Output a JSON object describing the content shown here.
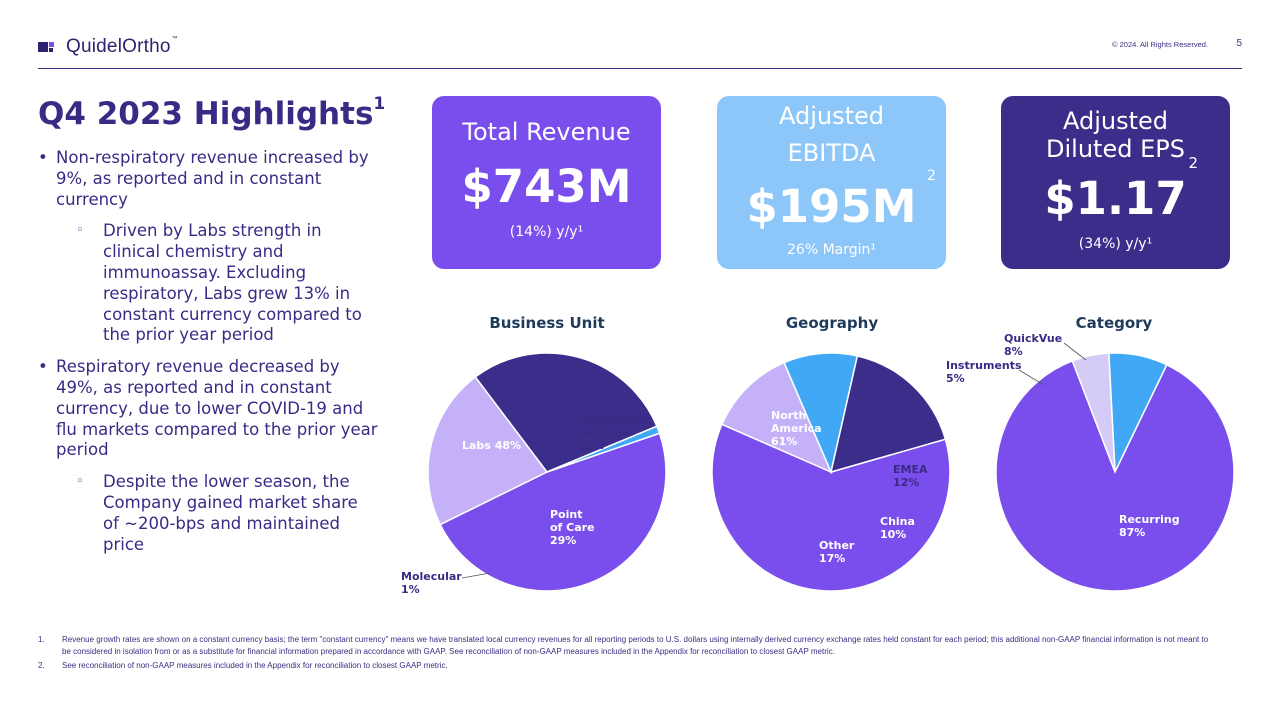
{
  "header": {
    "brand": "QuidelOrtho",
    "trademark": "™",
    "copyright": "© 2024. All Rights Reserved.",
    "page_number": "5"
  },
  "title": {
    "text": "Q4 2023 Highlights",
    "sup": "1"
  },
  "bullets": [
    {
      "level": 1,
      "text": "Non-respiratory revenue increased by 9%, as reported and in constant currency"
    },
    {
      "level": 2,
      "text": "Driven by Labs strength in clinical chemistry and immunoassay. Excluding respiratory, Labs grew 13% in constant currency compared to the prior year period"
    },
    {
      "level": 1,
      "text": "Respiratory revenue decreased by 49%, as reported and in constant currency, due to lower COVID-19 and flu markets compared to the prior year period"
    },
    {
      "level": 2,
      "text": "Despite the lower season, the Company gained market share of ~200-bps and maintained price"
    }
  ],
  "kpis": {
    "revenue": {
      "label": "Total Revenue",
      "value": "$743M",
      "sub": "(14%) y/y¹"
    },
    "ebitda": {
      "label_line1": "Adjusted",
      "label_line2": "EBITDA",
      "sup": "2",
      "value": "$195M",
      "sub": "26% Margin¹"
    },
    "eps": {
      "label_line1": "Adjusted",
      "label_line2": "Diluted EPS",
      "sup": "2",
      "value": "$1.17",
      "sub": "(34%) y/y¹"
    }
  },
  "colors": {
    "purple": "#7a4eec",
    "lavender": "#c4b1f8",
    "navy": "#3b2e8b",
    "sky": "#41a8f5",
    "light_sky": "#8dc6f9",
    "pale": "#d4ccf6"
  },
  "chart_data": [
    {
      "type": "pie",
      "title": "Business Unit",
      "slices": [
        {
          "name": "Labs",
          "label": "48%",
          "value": 48,
          "color": "#7a4eec"
        },
        {
          "name": "Transfusion Medicine",
          "label": "22%",
          "value": 22,
          "color": "#c4b1f8"
        },
        {
          "name": "Point of Care",
          "label": "29%",
          "value": 29,
          "color": "#3b2e8b"
        },
        {
          "name": "Molecular",
          "label": "1%",
          "value": 1,
          "color": "#41a8f5"
        }
      ]
    },
    {
      "type": "pie",
      "title": "Geography",
      "slices": [
        {
          "name": "North America",
          "label": "61%",
          "value": 61,
          "color": "#7a4eec"
        },
        {
          "name": "EMEA",
          "label": "12%",
          "value": 12,
          "color": "#c4b1f8"
        },
        {
          "name": "China",
          "label": "10%",
          "value": 10,
          "color": "#41a8f5"
        },
        {
          "name": "Other",
          "label": "17%",
          "value": 17,
          "color": "#3b2e8b"
        }
      ]
    },
    {
      "type": "pie",
      "title": "Category",
      "slices": [
        {
          "name": "QuickVue",
          "label": "8%",
          "value": 8,
          "color": "#41a8f5"
        },
        {
          "name": "Recurring",
          "label": "87%",
          "value": 87,
          "color": "#7a4eec"
        },
        {
          "name": "Instruments",
          "label": "5%",
          "value": 5,
          "color": "#d4ccf6"
        }
      ]
    }
  ],
  "footnotes": [
    {
      "num": "1.",
      "text": "Revenue growth rates are shown on a constant currency basis; the term \"constant currency\" means we have translated local currency revenues for all reporting periods to U.S. dollars using internally derived currency exchange rates held constant for each period; this additional non-GAAP financial information is not meant to be considered in isolation from or as a substitute for financial information prepared in accordance with GAAP. See reconciliation of non-GAAP measures included in the Appendix for reconciliation to closest GAAP metric."
    },
    {
      "num": "2.",
      "text": "See reconciliation of non-GAAP measures included in the Appendix for reconciliation to closest GAAP metric."
    }
  ]
}
